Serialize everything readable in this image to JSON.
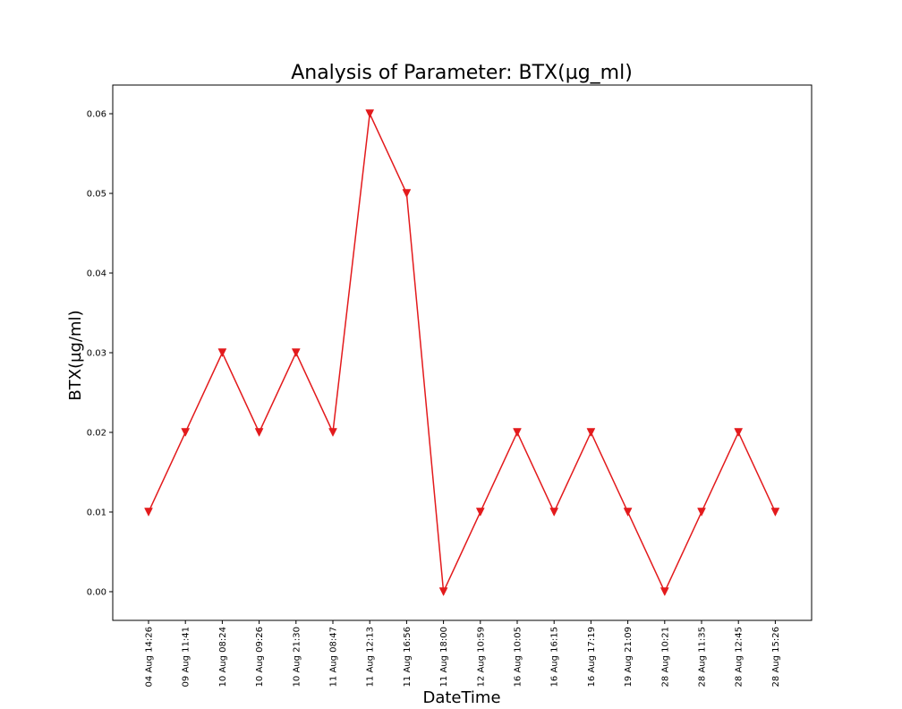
{
  "chart_data": {
    "type": "line",
    "title": "Analysis of Parameter: BTX(µg_ml)",
    "xlabel": "DateTime",
    "ylabel": "BTX(µg/ml)",
    "categories": [
      "04 Aug 14:26",
      "09 Aug 11:41",
      "10 Aug 08:24",
      "10 Aug 09:26",
      "10 Aug 21:30",
      "11 Aug 08:47",
      "11 Aug 12:13",
      "11 Aug 16:56",
      "11 Aug 18:00",
      "12 Aug 10:59",
      "16 Aug 10:05",
      "16 Aug 16:15",
      "16 Aug 17:19",
      "19 Aug 21:09",
      "28 Aug 10:21",
      "28 Aug 11:35",
      "28 Aug 12:45",
      "28 Aug 15:26"
    ],
    "series": [
      {
        "values": [
          0.01,
          0.02,
          0.03,
          0.02,
          0.03,
          0.02,
          0.06,
          0.05,
          0.0,
          0.01,
          0.02,
          0.01,
          0.02,
          0.01,
          0.0,
          0.01,
          0.02,
          0.01
        ],
        "color": "#e31a1c",
        "marker": "triangle-down"
      }
    ],
    "yticks": [
      "0.00",
      "0.01",
      "0.02",
      "0.03",
      "0.04",
      "0.05",
      "0.06"
    ],
    "ylim": [
      -0.0036,
      0.0636
    ],
    "grid": false,
    "legend": "none"
  }
}
